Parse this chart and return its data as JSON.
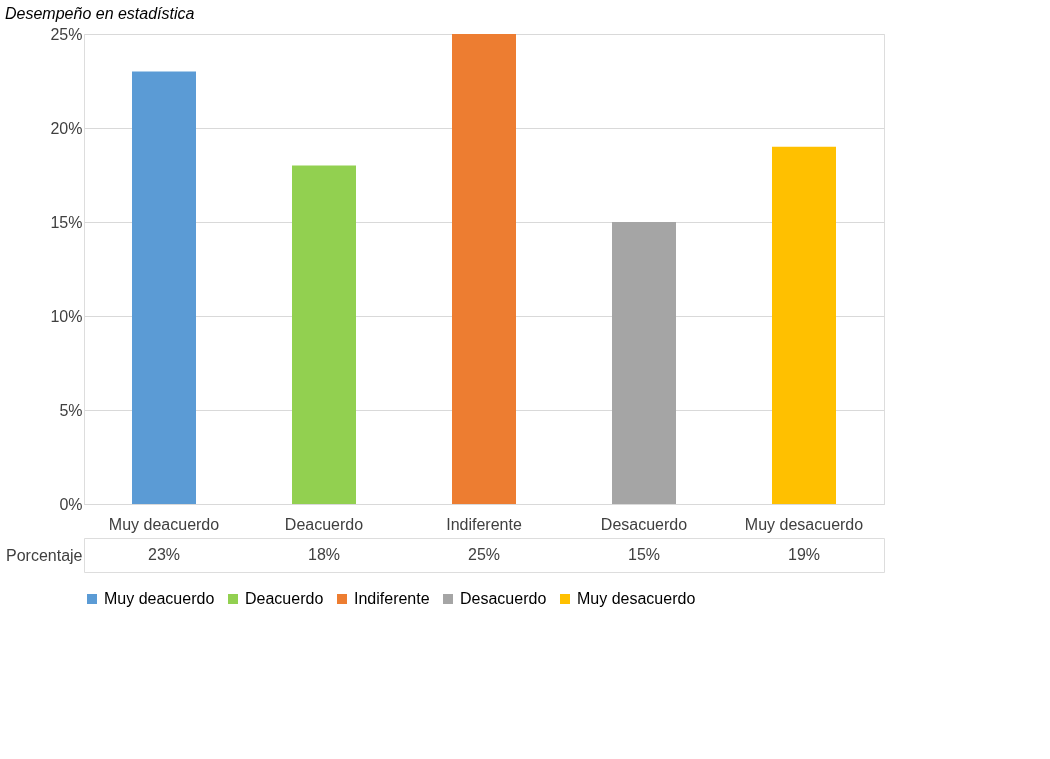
{
  "chart_data": {
    "type": "bar",
    "title": "Desempeño en estadística",
    "categories": [
      "Muy deacuerdo",
      "Deacuerdo",
      "Indiferente",
      "Desacuerdo",
      "Muy desacuerdo"
    ],
    "series": [
      {
        "name": "Muy deacuerdo",
        "color": "#5b9bd5",
        "values": [
          23,
          null,
          null,
          null,
          null
        ],
        "value_labels": [
          "23%",
          null,
          null,
          null,
          null
        ]
      },
      {
        "name": "Deacuerdo",
        "color": "#92d050",
        "values": [
          null,
          18,
          null,
          null,
          null
        ],
        "value_labels": [
          null,
          "18%",
          null,
          null,
          null
        ]
      },
      {
        "name": "Indiferente",
        "color": "#ed7d31",
        "values": [
          null,
          null,
          25,
          null,
          null
        ],
        "value_labels": [
          null,
          null,
          "25%",
          null,
          null
        ]
      },
      {
        "name": "Desacuerdo",
        "color": "#a5a5a5",
        "values": [
          null,
          null,
          null,
          15,
          null
        ],
        "value_labels": [
          null,
          null,
          null,
          "15%",
          null
        ]
      },
      {
        "name": "Muy desacuerdo",
        "color": "#ffc000",
        "values": [
          null,
          null,
          null,
          null,
          19
        ],
        "value_labels": [
          null,
          null,
          null,
          null,
          "19%"
        ]
      }
    ],
    "annotations": [
      "Porcentaje"
    ],
    "ylim": [
      0,
      25
    ],
    "yticks": [
      {
        "value": 0,
        "label": "0%"
      },
      {
        "value": 5,
        "label": "5%"
      },
      {
        "value": 10,
        "label": "10%"
      },
      {
        "value": 15,
        "label": "15%"
      },
      {
        "value": 20,
        "label": "20%"
      },
      {
        "value": 25,
        "label": "25%"
      }
    ],
    "grid": "y",
    "legend": "bottom"
  }
}
